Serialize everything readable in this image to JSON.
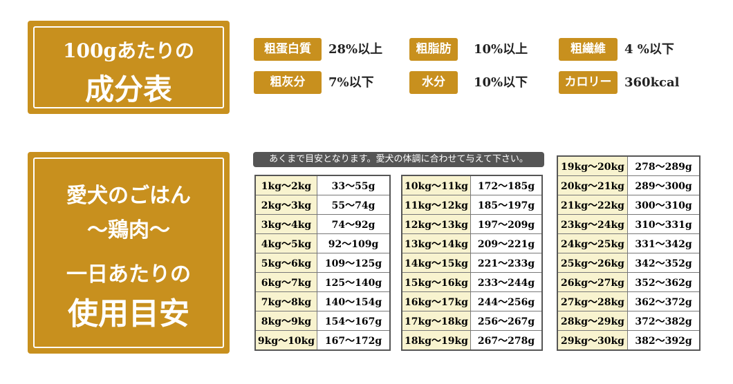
{
  "header": {
    "line1": "100gあたりの",
    "line2": "成分表"
  },
  "nutrients": [
    {
      "label": "粗蛋白質",
      "value": "28%以上"
    },
    {
      "label": "粗脂肪",
      "value": "10%以上"
    },
    {
      "label": "粗繊維",
      "value": "4 %以下"
    },
    {
      "label": "粗灰分",
      "value": "7%以下"
    },
    {
      "label": "水分",
      "value": "10%以下"
    },
    {
      "label": "カロリー",
      "value": "360kcal"
    }
  ],
  "feeding": {
    "lines": [
      "愛犬のごはん",
      "〜鶏肉〜",
      "一日あたりの",
      "使用目安"
    ],
    "note": "あくまで目安となります。愛犬の体調に合わせて与えて下さい。",
    "tables": [
      {
        "rows": [
          [
            "1kg〜2kg",
            "33〜55g"
          ],
          [
            "2kg〜3kg",
            "55〜74g"
          ],
          [
            "3kg〜4kg",
            "74〜92g"
          ],
          [
            "4kg〜5kg",
            "92〜109g"
          ],
          [
            "5kg〜6kg",
            "109〜125g"
          ],
          [
            "6kg〜7kg",
            "125〜140g"
          ],
          [
            "7kg〜8kg",
            "140〜154g"
          ],
          [
            "8kg〜9kg",
            "154〜167g"
          ],
          [
            "9kg〜10kg",
            "167〜172g"
          ]
        ]
      },
      {
        "rows": [
          [
            "10kg〜11kg",
            "172〜185g"
          ],
          [
            "11kg〜12kg",
            "185〜197g"
          ],
          [
            "12kg〜13kg",
            "197〜209g"
          ],
          [
            "13kg〜14kg",
            "209〜221g"
          ],
          [
            "14kg〜15kg",
            "221〜233g"
          ],
          [
            "15kg〜16kg",
            "233〜244g"
          ],
          [
            "16kg〜17kg",
            "244〜256g"
          ],
          [
            "17kg〜18kg",
            "256〜267g"
          ],
          [
            "18kg〜19kg",
            "267〜278g"
          ]
        ]
      },
      {
        "rows": [
          [
            "19kg〜20kg",
            "278〜289g"
          ],
          [
            "20kg〜21kg",
            "289〜300g"
          ],
          [
            "21kg〜22kg",
            "300〜310g"
          ],
          [
            "23kg〜24kg",
            "310〜331g"
          ],
          [
            "24kg〜25kg",
            "331〜342g"
          ],
          [
            "25kg〜26kg",
            "342〜352g"
          ],
          [
            "26kg〜27kg",
            "352〜362g"
          ],
          [
            "27kg〜28kg",
            "362〜372g"
          ],
          [
            "28kg〜29kg",
            "372〜382g"
          ],
          [
            "29kg〜30kg",
            "382〜392g"
          ]
        ]
      }
    ]
  }
}
